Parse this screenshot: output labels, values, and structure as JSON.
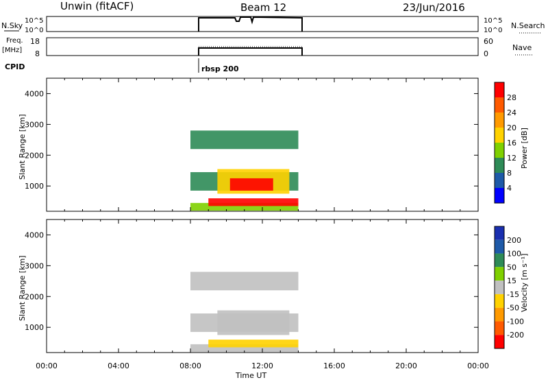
{
  "header": {
    "station": "Unwin (fitACF)",
    "beam": "Beam 12",
    "date": "23/Jun/2016"
  },
  "left_labels": {
    "nsky": "N.Sky",
    "freq_line1": "Freq.",
    "freq_line2": "[MHz]",
    "cpid": "CPID",
    "nsky_tick_top": "10^5",
    "nsky_tick_bottom": "10^0",
    "freq_tick_top": "18",
    "freq_tick_bottom": "8"
  },
  "right_labels": {
    "nsearch": "N.Search",
    "nave": "Nave",
    "nsearch_tick_top": "10^5",
    "nsearch_tick_bottom": "10^0",
    "nave_tick_top": "60",
    "nave_tick_bottom": "0"
  },
  "cpid_label": "rbsp 200",
  "power_panel": {
    "ylabel": "Slant Range [km]",
    "colorbar_label": "Power [dB]",
    "colorbar_ticks": [
      "28",
      "24",
      "20",
      "16",
      "12",
      "8",
      "4"
    ],
    "colorbar_colors": [
      "#ff0000",
      "#ff5a00",
      "#ff9a00",
      "#ffd200",
      "#7fd000",
      "#2e8b57",
      "#1e5aa8",
      "#0000ff"
    ]
  },
  "velocity_panel": {
    "ylabel": "Slant Range [km]",
    "colorbar_label": "Velocity [m s⁻¹]",
    "colorbar_ticks": [
      "200",
      "100",
      "50",
      "15",
      "-15",
      "-50",
      "-100",
      "-200"
    ],
    "colorbar_colors": [
      "#1a2fb0",
      "#1e5aa8",
      "#2e8b57",
      "#7fd000",
      "#c0c0c0",
      "#ffd200",
      "#ff9a00",
      "#ff5a00",
      "#ff0000"
    ]
  },
  "xlabel": "Time UT",
  "chart_data": [
    {
      "type": "heatmap",
      "name": "power",
      "x_ticks": [
        "00:00",
        "04:00",
        "08:00",
        "12:00",
        "16:00",
        "20:00",
        "00:00"
      ],
      "xlim_hours": [
        0,
        24
      ],
      "y_ticks": [
        1000,
        2000,
        3000,
        4000
      ],
      "ylim": [
        180,
        4500
      ],
      "regions": [
        {
          "t": [
            8.0,
            14.0
          ],
          "r": [
            200,
            450
          ],
          "value_db": 10
        },
        {
          "t": [
            9.0,
            14.0
          ],
          "r": [
            350,
            600
          ],
          "value_db": 28
        },
        {
          "t": [
            8.0,
            14.0
          ],
          "r": [
            850,
            1450
          ],
          "value_db": 6
        },
        {
          "t": [
            9.5,
            13.5
          ],
          "r": [
            750,
            1550
          ],
          "value_db": 16
        },
        {
          "t": [
            10.2,
            12.6
          ],
          "r": [
            850,
            1250
          ],
          "value_db": 26
        },
        {
          "t": [
            8.0,
            14.0
          ],
          "r": [
            2200,
            2800
          ],
          "value_db": 6
        }
      ]
    },
    {
      "type": "heatmap",
      "name": "velocity",
      "x_ticks": [
        "00:00",
        "04:00",
        "08:00",
        "12:00",
        "16:00",
        "20:00",
        "00:00"
      ],
      "xlim_hours": [
        0,
        24
      ],
      "y_ticks": [
        1000,
        2000,
        3000,
        4000
      ],
      "ylim": [
        180,
        4500
      ],
      "regions": [
        {
          "t": [
            8.0,
            14.0
          ],
          "r": [
            200,
            450
          ],
          "value_ms": -10
        },
        {
          "t": [
            9.0,
            14.0
          ],
          "r": [
            350,
            600
          ],
          "value_ms": -40
        },
        {
          "t": [
            8.0,
            14.0
          ],
          "r": [
            850,
            1450
          ],
          "value_ms": 0
        },
        {
          "t": [
            9.5,
            13.5
          ],
          "r": [
            750,
            1550
          ],
          "value_ms": 0
        },
        {
          "t": [
            8.0,
            14.0
          ],
          "r": [
            2200,
            2800
          ],
          "value_ms": 0
        }
      ]
    }
  ]
}
